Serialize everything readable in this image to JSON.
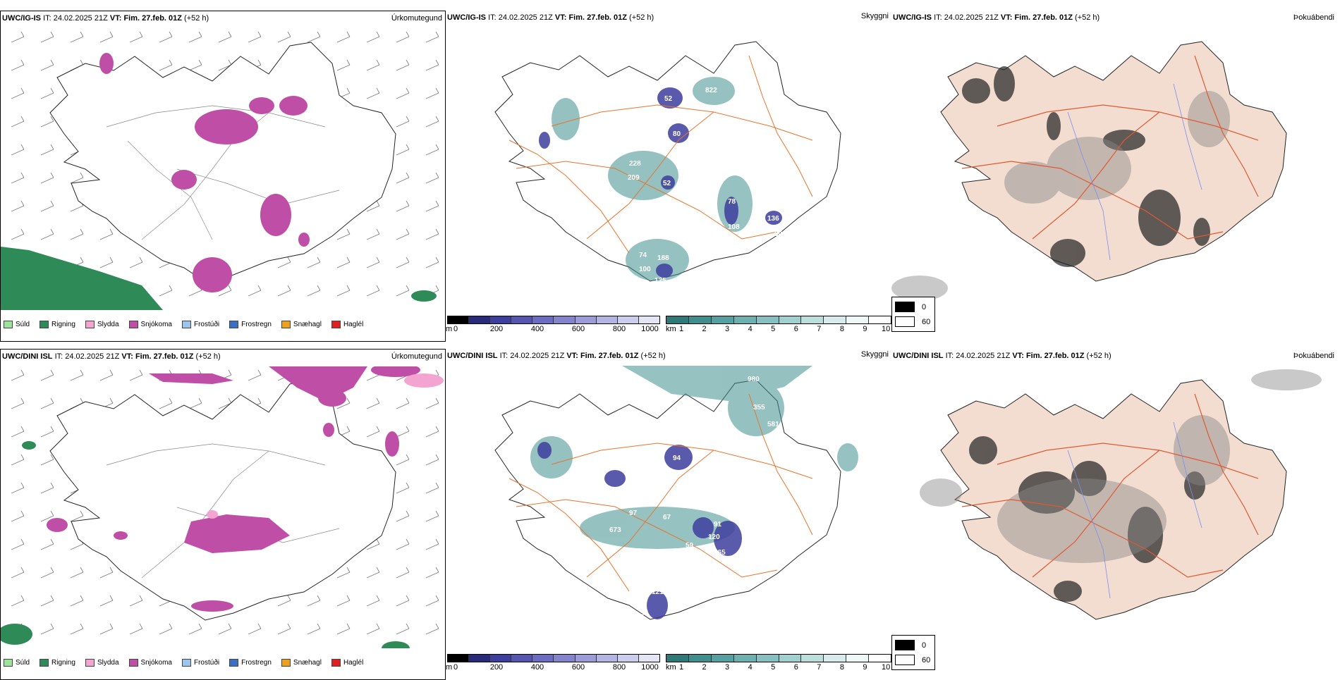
{
  "colors": {
    "suld": "#9be59b",
    "rigning": "#2e8b57",
    "slydda": "#f4a4d0",
    "snjokoma": "#bf4fa6",
    "frostudi": "#9cc4f0",
    "frostregn": "#3a6fc4",
    "snaehagl": "#f0a020",
    "hagl": "#e02020",
    "cloudbase": "#3e3e9e",
    "visibility": "#3f8f8f",
    "roads": "#e8742a",
    "land_fog": "#f2ddd0"
  },
  "panels": {
    "top_left": {
      "model": "UWC/IG-IS",
      "it_label": "IT:",
      "it_value": "24.02.2025 21Z",
      "vt_label": "VT:",
      "vt_value": "Fim. 27.feb. 01Z",
      "lead": "(+52 h)",
      "title": "Úrkomutegund"
    },
    "top_mid": {
      "model": "UWC/IG-IS",
      "it_label": "IT:",
      "it_value": "24.02.2025 21Z",
      "vt_label": "VT:",
      "vt_value": "Fim. 27.feb. 01Z",
      "lead": "(+52 h)",
      "title": "Skyggni",
      "labels": [
        "822",
        "52",
        "80",
        "72",
        "228",
        "209",
        "52",
        "78",
        "108",
        "136",
        "50",
        "74",
        "188",
        "100",
        "125",
        "67",
        "208",
        "505"
      ]
    },
    "top_right": {
      "model": "UWC/IG-IS",
      "it_label": "IT:",
      "it_value": "24.02.2025 21Z",
      "vt_label": "VT:",
      "vt_value": "Fim. 27.feb. 01Z",
      "lead": "(+52 h)",
      "title": "Þokuábendi"
    },
    "bottom_left": {
      "model": "UWC/DINI ISL",
      "it_label": "IT:",
      "it_value": "24.02.2025 21Z",
      "vt_label": "VT:",
      "vt_value": "Fim. 27.feb. 01Z",
      "lead": "(+52 h)",
      "title": "Úrkomutegund"
    },
    "bottom_mid": {
      "model": "UWC/DINI ISL",
      "it_label": "IT:",
      "it_value": "24.02.2025 21Z",
      "vt_label": "VT:",
      "vt_value": "Fim. 27.feb. 01Z",
      "lead": "(+52 h)",
      "title": "Skyggni",
      "labels": [
        "980",
        "243",
        "355",
        "581",
        "94",
        "102",
        "97",
        "67",
        "673",
        "91",
        "120",
        "165",
        "59",
        "12",
        "121",
        "55",
        "64"
      ]
    },
    "bottom_right": {
      "model": "UWC/DINI ISL",
      "it_label": "IT:",
      "it_value": "24.02.2025 21Z",
      "vt_label": "VT:",
      "vt_value": "Fim. 27.feb. 01Z",
      "lead": "(+52 h)",
      "title": "Þokuábendi"
    }
  },
  "precip_legend": [
    "Súld",
    "Rigning",
    "Slydda",
    "Snjókoma",
    "Frostúði",
    "Frostregn",
    "Snæhagl",
    "Haglél"
  ],
  "cloud_bar": {
    "unit": "m",
    "ticks": [
      "0",
      "200",
      "400",
      "600",
      "800",
      "1000"
    ]
  },
  "vis_bar": {
    "unit": "km",
    "ticks": [
      "1",
      "2",
      "3",
      "4",
      "5",
      "6",
      "7",
      "8",
      "9",
      "10"
    ]
  },
  "fog_legend": {
    "max": "0",
    "min": "60"
  }
}
